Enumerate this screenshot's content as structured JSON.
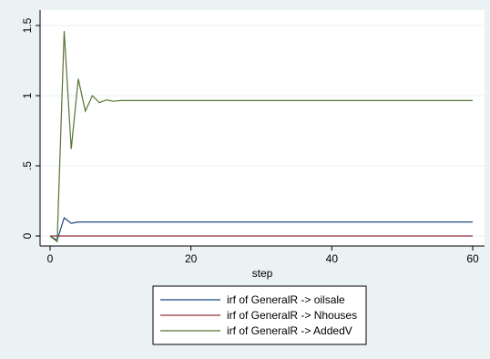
{
  "chart_data": {
    "type": "line",
    "title": "",
    "xlabel": "step",
    "ylabel": "",
    "xlim": [
      0,
      60
    ],
    "ylim": [
      -0.05,
      1.55
    ],
    "xticks": [
      0,
      20,
      40,
      60
    ],
    "yticks": [
      0,
      0.5,
      1,
      1.5
    ],
    "xtick_labels": [
      "0",
      "20",
      "40",
      "60"
    ],
    "ytick_labels": [
      "0",
      ".5",
      "1",
      "1.5"
    ],
    "grid": true,
    "legend_position": "bottom",
    "colors": {
      "background": "#eaf2f3",
      "plot_area": "#ffffff",
      "grid": "#eaf2f3"
    },
    "series": [
      {
        "name": "irf of GeneralR -> oilsale",
        "color": "#1a4780",
        "x": [
          0,
          1,
          2,
          3,
          4,
          5,
          6,
          7,
          8,
          9,
          10,
          11,
          12,
          20,
          30,
          40,
          50,
          60
        ],
        "values": [
          0,
          -0.03,
          0.13,
          0.09,
          0.1,
          0.1,
          0.1,
          0.1,
          0.1,
          0.1,
          0.1,
          0.1,
          0.1,
          0.1,
          0.1,
          0.1,
          0.1,
          0.1
        ]
      },
      {
        "name": "irf of GeneralR -> Nhouses",
        "color": "#90353b",
        "x": [
          0,
          1,
          2,
          3,
          4,
          5,
          10,
          20,
          30,
          40,
          50,
          60
        ],
        "values": [
          0,
          0,
          0,
          0,
          0,
          0,
          0,
          0,
          0,
          0,
          0,
          0
        ]
      },
      {
        "name": "irf of GeneralR -> AddedV",
        "color": "#55752f",
        "x": [
          0,
          1,
          2,
          3,
          4,
          5,
          6,
          7,
          8,
          9,
          10,
          11,
          12,
          20,
          30,
          40,
          50,
          60
        ],
        "values": [
          0,
          -0.04,
          1.46,
          0.62,
          1.12,
          0.89,
          1.0,
          0.95,
          0.97,
          0.96,
          0.965,
          0.965,
          0.965,
          0.965,
          0.965,
          0.965,
          0.965,
          0.965
        ]
      }
    ]
  }
}
